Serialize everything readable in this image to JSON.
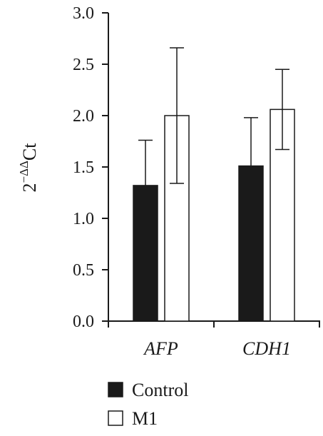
{
  "chart_data": {
    "type": "bar",
    "categories": [
      "AFP",
      "CDH1"
    ],
    "series": [
      {
        "name": "Control",
        "color": "#1a1a1a",
        "values": [
          1.32,
          1.51
        ],
        "errors": [
          0.44,
          0.47
        ]
      },
      {
        "name": "M1",
        "color": "#ffffff",
        "values": [
          2.0,
          2.06
        ],
        "errors": [
          0.66,
          0.39
        ]
      }
    ],
    "ylim": [
      0,
      3.0
    ],
    "yticks": [
      "0.0",
      "0.5",
      "1.0",
      "1.5",
      "2.0",
      "2.5",
      "3.0"
    ],
    "ylabel": {
      "base": "2",
      "exponent": "−ΔΔ",
      "suffix": "Ct"
    },
    "xlabel": "",
    "title": "",
    "legend_position": "bottom",
    "grid": false
  }
}
